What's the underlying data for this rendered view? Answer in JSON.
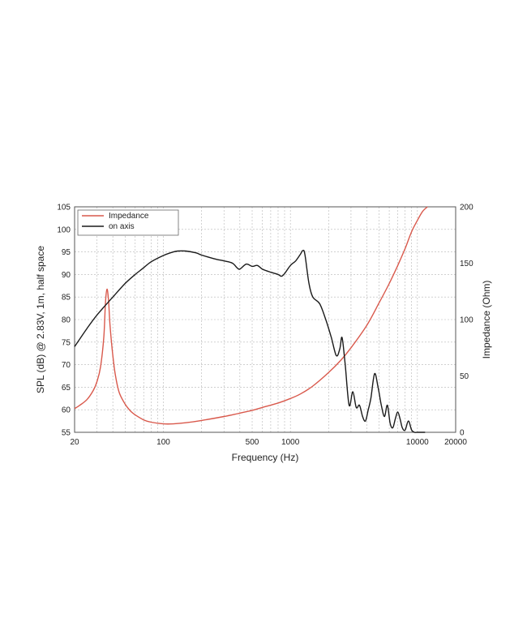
{
  "chart_data": {
    "type": "line",
    "xlabel": "Frequency (Hz)",
    "ylabel_left": "SPL (dB) @ 2.83V, 1m, half space",
    "ylabel_right": "Impedance (Ohm)",
    "x_scale": "log",
    "xlim": [
      20,
      20000
    ],
    "ylim_left": [
      55,
      105
    ],
    "ylim_right": [
      0,
      200
    ],
    "x_ticks": [
      "20",
      "100",
      "500",
      "1000",
      "10000",
      "20000"
    ],
    "y_ticks_left": [
      "55",
      "60",
      "65",
      "70",
      "75",
      "80",
      "85",
      "90",
      "95",
      "100",
      "105"
    ],
    "y_ticks_right": [
      "0",
      "50",
      "100",
      "150",
      "200"
    ],
    "grid": true,
    "legend_position": "top-left",
    "colors": {
      "impedance": "#d9594c",
      "on_axis": "#1a1a1a",
      "grid": "#b5b5b5"
    },
    "series": [
      {
        "name": "Impedance",
        "axis": "right",
        "x": [
          20,
          22,
          25,
          28,
          30,
          32,
          34,
          35,
          36,
          37,
          38,
          40,
          42,
          45,
          50,
          55,
          60,
          70,
          80,
          100,
          120,
          150,
          200,
          300,
          400,
          500,
          600,
          800,
          1000,
          1200,
          1500,
          2000,
          2500,
          3000,
          4000,
          5000,
          6000,
          7000,
          8000,
          9000,
          10000,
          11000,
          12000
        ],
        "y": [
          21,
          24,
          29,
          37,
          45,
          58,
          85,
          115,
          127,
          117,
          95,
          68,
          50,
          35,
          25,
          19,
          15.5,
          11,
          9,
          7.5,
          7.5,
          8.5,
          10.5,
          14,
          17,
          19.5,
          22,
          26,
          30,
          34,
          41,
          53,
          64,
          75,
          95,
          115,
          132,
          148,
          163,
          178,
          188,
          196,
          200
        ]
      },
      {
        "name": "on axis",
        "axis": "left",
        "x": [
          20,
          25,
          30,
          40,
          50,
          60,
          70,
          80,
          100,
          120,
          130,
          150,
          180,
          200,
          250,
          300,
          350,
          380,
          400,
          450,
          500,
          550,
          600,
          700,
          800,
          850,
          900,
          1000,
          1100,
          1200,
          1250,
          1300,
          1400,
          1500,
          1700,
          1900,
          2100,
          2300,
          2450,
          2550,
          2700,
          2900,
          3100,
          3300,
          3500,
          3700,
          3900,
          4100,
          4300,
          4600,
          4900,
          5200,
          5500,
          5800,
          6100,
          6400,
          6700,
          7000,
          7300,
          7600,
          8000,
          8500,
          9000,
          9500,
          10000,
          10500,
          11000,
          11500
        ],
        "y": [
          74,
          78,
          81,
          85,
          88,
          90,
          91.5,
          92.8,
          94.2,
          95,
          95.2,
          95.2,
          94.8,
          94.3,
          93.5,
          93,
          92.5,
          91.5,
          91.2,
          92.3,
          91.8,
          92,
          91.2,
          90.5,
          90,
          89.6,
          90.2,
          92,
          93,
          94.5,
          95.3,
          94.5,
          88,
          85,
          83.5,
          80,
          76,
          72,
          73.5,
          76,
          70,
          61,
          64,
          60.5,
          61,
          58.5,
          57.5,
          60,
          62.5,
          68,
          65,
          61,
          58.5,
          61,
          57,
          56,
          58,
          59.5,
          58,
          56,
          55.5,
          57.5,
          55.5,
          54.5,
          54.5,
          55,
          54.7,
          54.5
        ]
      }
    ]
  }
}
